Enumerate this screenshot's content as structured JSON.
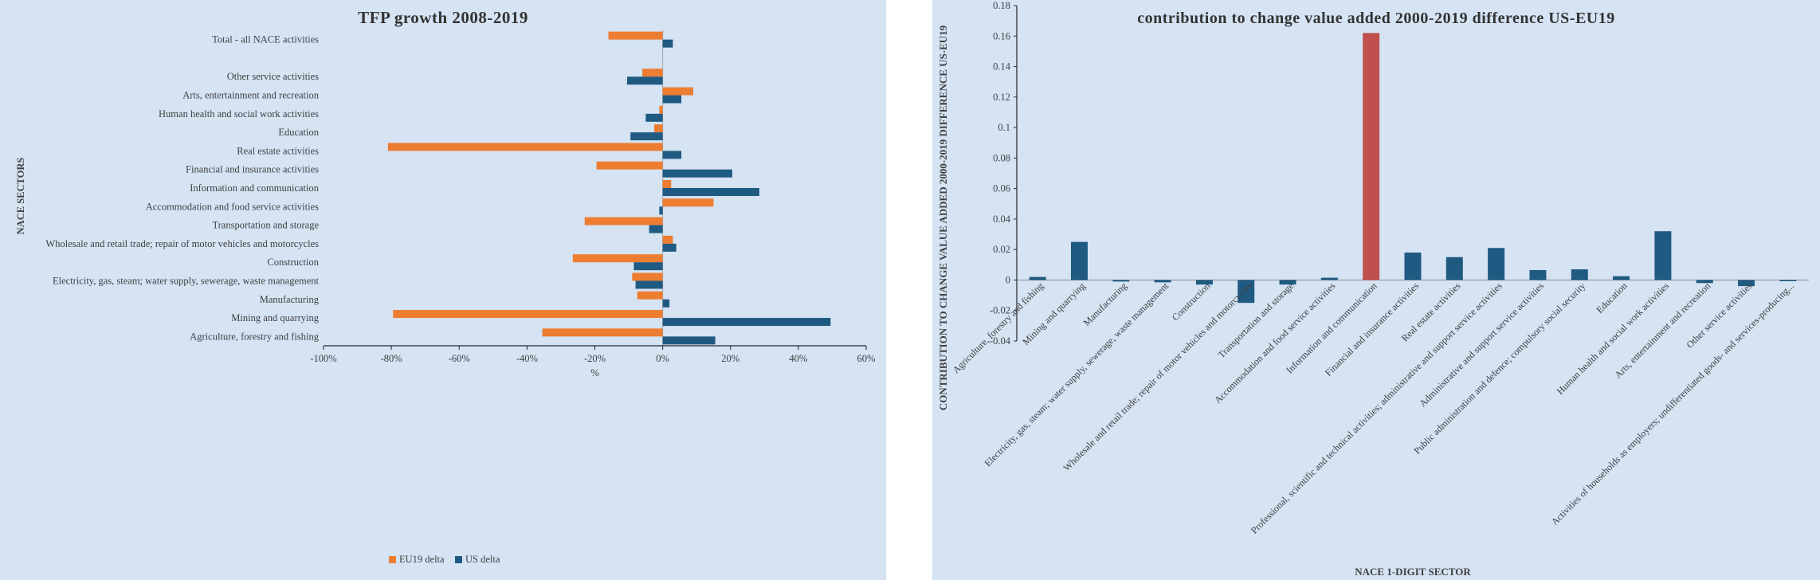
{
  "colors": {
    "eu": "#ed7d31",
    "us": "#1f5a82",
    "highlight": "#c0504d",
    "panel_bg": "#d5e3f3"
  },
  "chart_data": [
    {
      "type": "bar",
      "orientation": "horizontal",
      "title": "TFP growth 2008-2019",
      "xlabel": "%",
      "ylabel": "NACE SECTORS",
      "xlim": [
        -100,
        60
      ],
      "xticks": [
        "-100%",
        "-80%",
        "-60%",
        "-40%",
        "-20%",
        "0%",
        "20%",
        "40%",
        "60%"
      ],
      "legend_position": "bottom",
      "categories": [
        "Total - all NACE activities",
        "",
        "Other service activities",
        "Arts, entertainment and recreation",
        "Human health and social work activities",
        "Education",
        "Real estate activities",
        "Financial and insurance activities",
        "Information and communication",
        "Accommodation and food service activities",
        "Transportation and storage",
        "Wholesale and retail trade; repair of motor vehicles and motorcycles",
        "Construction",
        "Electricity, gas, steam; water supply, sewerage, waste management",
        "Manufacturing",
        "Mining and quarrying",
        "Agriculture, forestry and fishing"
      ],
      "series": [
        {
          "name": "EU19 delta",
          "values": [
            -16,
            null,
            -6,
            9,
            -1,
            -2.5,
            -81,
            -19.5,
            2.5,
            15,
            -23,
            3,
            -26.5,
            -9,
            -7.5,
            -79.5,
            -35.5
          ]
        },
        {
          "name": "US delta",
          "values": [
            3,
            null,
            -10.5,
            5.5,
            -5,
            -9.5,
            5.5,
            20.5,
            28.5,
            -1,
            -4,
            4,
            -8.5,
            -8,
            2,
            49.5,
            15.5
          ]
        }
      ]
    },
    {
      "type": "bar",
      "title": "contribution to change value added 2000-2019 difference US-EU19",
      "xlabel": "NACE 1-DIGIT SECTOR",
      "ylabel": "CONTRIBUTION TO CHANGE VALUE ADDED 2000-2019 DIFFERENCE US-EU19",
      "ylim": [
        -0.04,
        0.18
      ],
      "yticks": [
        "0.18",
        "0.16",
        "0.14",
        "0.12",
        "0.1",
        "0.08",
        "0.06",
        "0.04",
        "0.02",
        "0",
        "-0.02",
        "-0.04"
      ],
      "categories": [
        "Agriculture, forestry and fishing",
        "Mining and quarrying",
        "Manufacturing",
        "Electricity, gas, steam; water supply, sewerage, waste management",
        "Construction",
        "Wholesale and retail trade; repair of motor vehicles and motorcycles",
        "Transportation and storage",
        "Accommodation and food service activities",
        "Information and communication",
        "Financial and insurance activities",
        "Real estate activities",
        "Professional, scientific and technical activities; administrative and support service activities",
        "Administrative and support service activities",
        "Public administration and defence; compulsory social security",
        "Education",
        "Human health and social work activities",
        "Arts, entertainment and recreation",
        "Other service activities",
        "Activities of households as employers; undifferentiated goods- and services-producing..."
      ],
      "values": [
        0.002,
        0.025,
        -0.001,
        -0.0015,
        -0.003,
        -0.015,
        -0.003,
        0.0015,
        0.162,
        0.018,
        0.015,
        0.021,
        0.0065,
        0.007,
        0.0025,
        0.032,
        -0.002,
        -0.004,
        -0.0005
      ],
      "highlight_index": 8
    }
  ]
}
